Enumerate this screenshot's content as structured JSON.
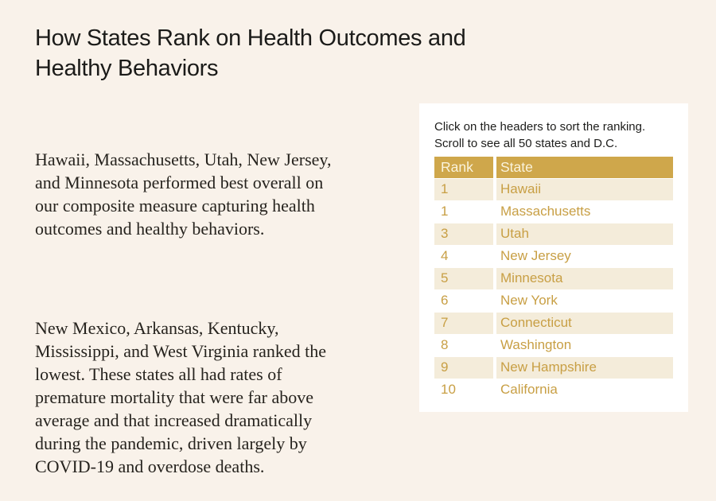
{
  "page": {
    "background_color": "#F9F2EA",
    "title_lines": [
      "How States Rank on Health Outcomes and",
      "Healthy Behaviors"
    ],
    "paragraphs": [
      {
        "lines": [
          "Hawaii, Massachusetts, Utah, New Jersey,",
          "and Minnesota performed best overall on",
          "our composite measure capturing health",
          "outcomes and healthy behaviors."
        ]
      },
      {
        "lines": [
          "New Mexico, Arkansas, Kentucky,",
          "Mississippi, and West Virginia ranked the",
          "lowest. These states all had rates of",
          "premature mortality that were far above",
          "average and that increased dramatically",
          "during the pandemic, driven largely by",
          "COVID-19 and overdose deaths."
        ]
      }
    ]
  },
  "card": {
    "background_color": "#FFFFFF",
    "instructions_lines": [
      "Click on the headers to sort the ranking.",
      "Scroll to see all 50 states and D.C."
    ],
    "table": {
      "columns": [
        "Rank",
        "State"
      ],
      "rows": [
        {
          "rank": "1",
          "state": "Hawaii"
        },
        {
          "rank": "1",
          "state": "Massachusetts"
        },
        {
          "rank": "3",
          "state": "Utah"
        },
        {
          "rank": "4",
          "state": "New Jersey"
        },
        {
          "rank": "5",
          "state": "Minnesota"
        },
        {
          "rank": "6",
          "state": "New York"
        },
        {
          "rank": "7",
          "state": "Connecticut"
        },
        {
          "rank": "8",
          "state": "Washington"
        },
        {
          "rank": "9",
          "state": "New Hampshire"
        },
        {
          "rank": "10",
          "state": "California"
        }
      ],
      "colors": {
        "header_background": "#CFA74B",
        "header_text": "#FAF3DC",
        "row_text": "#C89F44",
        "stripe_background": "#F4ECDA",
        "divider": "#FFFFFF"
      }
    }
  }
}
